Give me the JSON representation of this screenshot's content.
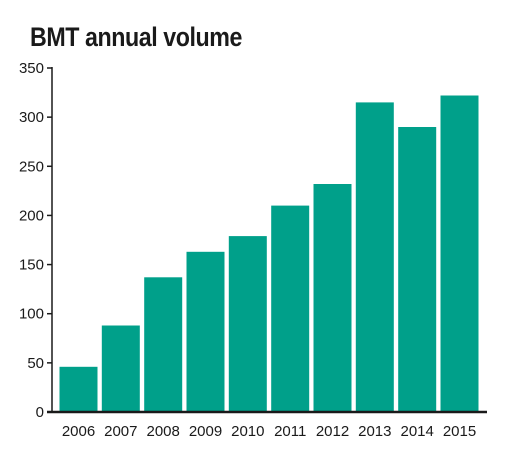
{
  "chart_data": {
    "type": "bar",
    "title": "BMT annual volume",
    "categories": [
      "2006",
      "2007",
      "2008",
      "2009",
      "2010",
      "2011",
      "2012",
      "2013",
      "2014",
      "2015"
    ],
    "values": [
      46,
      88,
      137,
      163,
      179,
      210,
      232,
      315,
      290,
      322
    ],
    "ylim": [
      0,
      350
    ],
    "yticks": [
      0,
      50,
      100,
      150,
      200,
      250,
      300,
      350
    ],
    "grid": false,
    "bar_color": "#00A08A",
    "axis_color": "#1a1a1a"
  }
}
